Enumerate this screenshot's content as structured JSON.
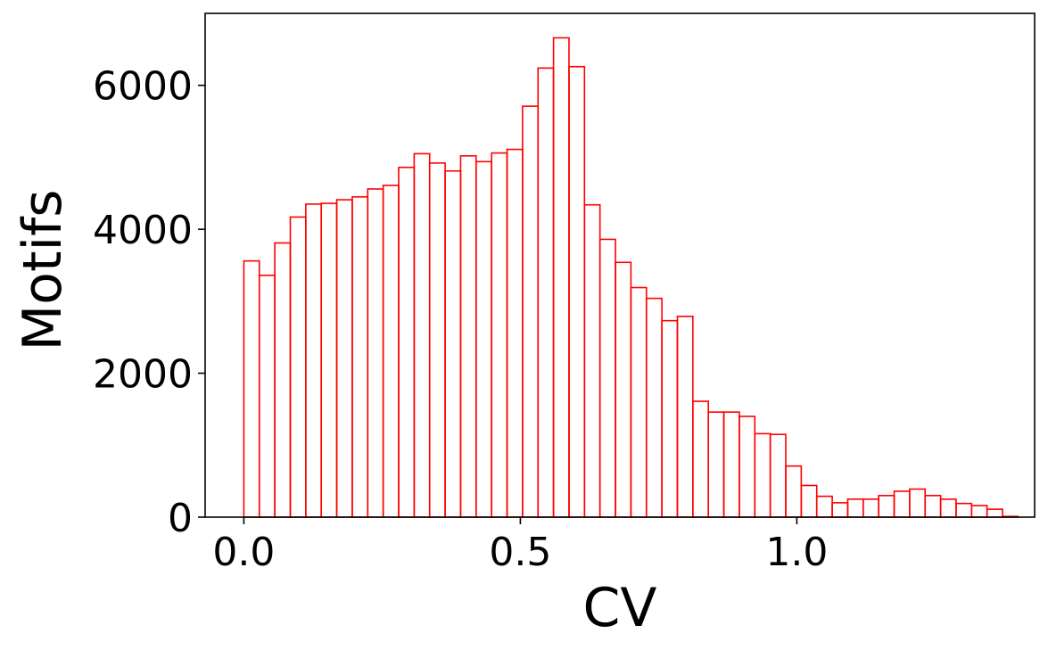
{
  "chart_data": {
    "type": "bar",
    "style": "step-histogram",
    "title": "",
    "xlabel": "CV",
    "ylabel": "Motifs",
    "xlim": [
      -0.07,
      1.43
    ],
    "ylim": [
      0,
      7000
    ],
    "xticks": [
      0.0,
      0.5,
      1.0
    ],
    "xtick_labels": [
      "0.0",
      "0.5",
      "1.0"
    ],
    "yticks": [
      0,
      2000,
      4000,
      6000
    ],
    "ytick_labels": [
      "0",
      "2000",
      "4000",
      "6000"
    ],
    "grid": false,
    "legend": "none",
    "bin_start": 0.0,
    "bin_width": 0.028,
    "values": [
      3560,
      3360,
      3810,
      4170,
      4350,
      4360,
      4410,
      4450,
      4560,
      4610,
      4860,
      5050,
      4920,
      4810,
      5020,
      4940,
      5060,
      5110,
      5710,
      6240,
      6660,
      6260,
      4340,
      3860,
      3540,
      3190,
      3040,
      2730,
      2790,
      1610,
      1460,
      1460,
      1400,
      1160,
      1150,
      710,
      440,
      290,
      200,
      250,
      250,
      300,
      360,
      390,
      300,
      250,
      190,
      160,
      110,
      10
    ],
    "color": "#ff0000"
  }
}
